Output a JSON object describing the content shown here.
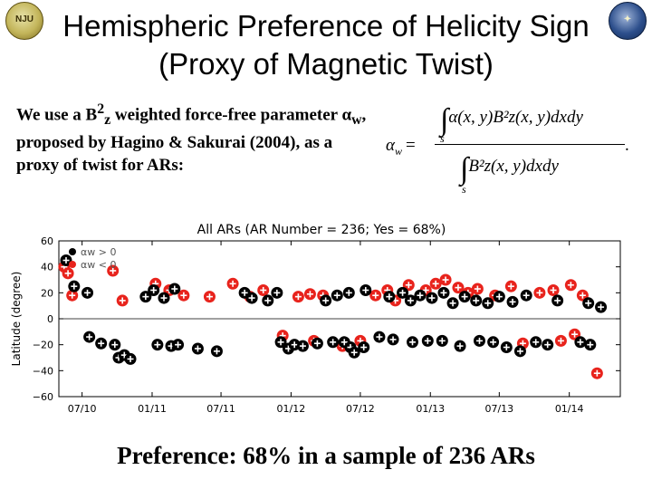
{
  "title": {
    "line1": "Hemispheric Preference of Helicity Sign",
    "line2": "(Proxy of Magnetic Twist)"
  },
  "intro": {
    "t1": "We use a B",
    "sup": "2",
    "sub": "z",
    "t2": " weighted force-free parameter α",
    "sub2": "w",
    "t3": ", proposed by Hagino & Sakurai (2004), as a proxy of twist for ARs:"
  },
  "formula": {
    "lhs": "α",
    "lhs_sub": "w",
    "eq": "=",
    "numerator": "α(x, y)B²z(x, y)dxdy",
    "denominator": "B²z(x, y)dxdy",
    "int_sub": "s",
    "dot": "."
  },
  "footer": "Preference: 68% in a sample of 236 ARs",
  "chart_data": {
    "type": "scatter",
    "title": "All ARs (AR Number = 236; Yes = 68%)",
    "ylabel": "Latitude (degree)",
    "xlabel": "",
    "x_ticks": [
      "07/10",
      "01/11",
      "07/11",
      "01/12",
      "07/12",
      "01/13",
      "07/13",
      "01/14"
    ],
    "y_ticks": [
      60,
      40,
      20,
      0,
      -20,
      -40,
      -60
    ],
    "xlim": [
      "2010-05-01",
      "2014-05-15"
    ],
    "ylim": [
      -60,
      60
    ],
    "legend_position": "top-left",
    "colors": {
      "positive": "#e8231c",
      "negative": "#000000",
      "marker": "#ffffff"
    },
    "series": [
      {
        "name": "αw > 0",
        "points": [
          [
            "2010-05-15",
            40
          ],
          [
            "2010-05-25",
            35
          ],
          [
            "2010-06-05",
            18
          ],
          [
            "2010-09-20",
            37
          ],
          [
            "2010-10-15",
            14
          ],
          [
            "2011-01-10",
            27
          ],
          [
            "2011-02-15",
            22
          ],
          [
            "2011-03-25",
            18
          ],
          [
            "2011-06-01",
            17
          ],
          [
            "2011-08-01",
            27
          ],
          [
            "2011-09-15",
            17
          ],
          [
            "2011-10-20",
            22
          ],
          [
            "2012-01-20",
            17
          ],
          [
            "2012-02-20",
            19
          ],
          [
            "2012-03-25",
            18
          ],
          [
            "2011-12-10",
            -13
          ],
          [
            "2012-03-01",
            -17
          ],
          [
            "2012-08-10",
            18
          ],
          [
            "2012-09-10",
            22
          ],
          [
            "2012-10-01",
            14
          ],
          [
            "2012-11-05",
            26
          ],
          [
            "2012-12-20",
            22
          ],
          [
            "2013-01-15",
            27
          ],
          [
            "2013-02-10",
            30
          ],
          [
            "2013-03-15",
            24
          ],
          [
            "2013-04-10",
            20
          ],
          [
            "2013-05-05",
            23
          ],
          [
            "2013-06-20",
            18
          ],
          [
            "2013-08-01",
            25
          ],
          [
            "2013-10-15",
            20
          ],
          [
            "2013-11-20",
            22
          ],
          [
            "2014-01-05",
            26
          ],
          [
            "2014-02-05",
            18
          ],
          [
            "2013-09-01",
            -19
          ],
          [
            "2013-12-10",
            -17
          ],
          [
            "2014-01-15",
            -12
          ],
          [
            "2014-03-15",
            -42
          ],
          [
            "2012-05-15",
            -21
          ],
          [
            "2012-07-01",
            -17
          ]
        ]
      },
      {
        "name": "αw < 0",
        "points": [
          [
            "2010-05-20",
            45
          ],
          [
            "2010-06-10",
            25
          ],
          [
            "2010-07-15",
            20
          ],
          [
            "2010-07-20",
            -14
          ],
          [
            "2010-08-20",
            -19
          ],
          [
            "2010-09-25",
            -20
          ],
          [
            "2010-10-05",
            -30
          ],
          [
            "2010-10-20",
            -28
          ],
          [
            "2010-11-05",
            -31
          ],
          [
            "2010-12-15",
            17
          ],
          [
            "2011-01-05",
            22
          ],
          [
            "2011-02-01",
            16
          ],
          [
            "2011-03-01",
            23
          ],
          [
            "2011-01-15",
            -20
          ],
          [
            "2011-02-20",
            -21
          ],
          [
            "2011-03-10",
            -20
          ],
          [
            "2011-05-01",
            -23
          ],
          [
            "2011-06-20",
            -25
          ],
          [
            "2011-09-01",
            20
          ],
          [
            "2011-09-20",
            16
          ],
          [
            "2011-11-01",
            14
          ],
          [
            "2011-11-25",
            20
          ],
          [
            "2011-12-05",
            -18
          ],
          [
            "2011-12-25",
            -23
          ],
          [
            "2012-01-10",
            -20
          ],
          [
            "2012-02-01",
            -21
          ],
          [
            "2012-03-10",
            -19
          ],
          [
            "2012-04-01",
            14
          ],
          [
            "2012-04-20",
            -18
          ],
          [
            "2012-05-20",
            -18
          ],
          [
            "2012-06-05",
            -22
          ],
          [
            "2012-06-15",
            -26
          ],
          [
            "2012-07-10",
            -22
          ],
          [
            "2012-05-01",
            18
          ],
          [
            "2012-06-01",
            20
          ],
          [
            "2012-07-15",
            22
          ],
          [
            "2012-09-15",
            17
          ],
          [
            "2012-10-20",
            20
          ],
          [
            "2012-11-10",
            14
          ],
          [
            "2012-12-05",
            18
          ],
          [
            "2013-01-05",
            16
          ],
          [
            "2013-02-05",
            20
          ],
          [
            "2013-03-01",
            12
          ],
          [
            "2013-04-01",
            17
          ],
          [
            "2013-05-01",
            14
          ],
          [
            "2013-06-01",
            12
          ],
          [
            "2013-07-01",
            17
          ],
          [
            "2013-08-05",
            13
          ],
          [
            "2013-09-10",
            18
          ],
          [
            "2013-12-01",
            14
          ],
          [
            "2014-02-20",
            12
          ],
          [
            "2014-03-25",
            9
          ],
          [
            "2012-08-20",
            -14
          ],
          [
            "2012-09-25",
            -16
          ],
          [
            "2012-11-15",
            -18
          ],
          [
            "2012-12-25",
            -17
          ],
          [
            "2013-02-01",
            -17
          ],
          [
            "2013-03-20",
            -21
          ],
          [
            "2013-05-10",
            -17
          ],
          [
            "2013-06-15",
            -18
          ],
          [
            "2013-07-20",
            -22
          ],
          [
            "2013-08-25",
            -25
          ],
          [
            "2013-10-05",
            -18
          ],
          [
            "2013-11-05",
            -20
          ],
          [
            "2014-01-30",
            -18
          ],
          [
            "2014-02-25",
            -20
          ]
        ]
      }
    ]
  }
}
